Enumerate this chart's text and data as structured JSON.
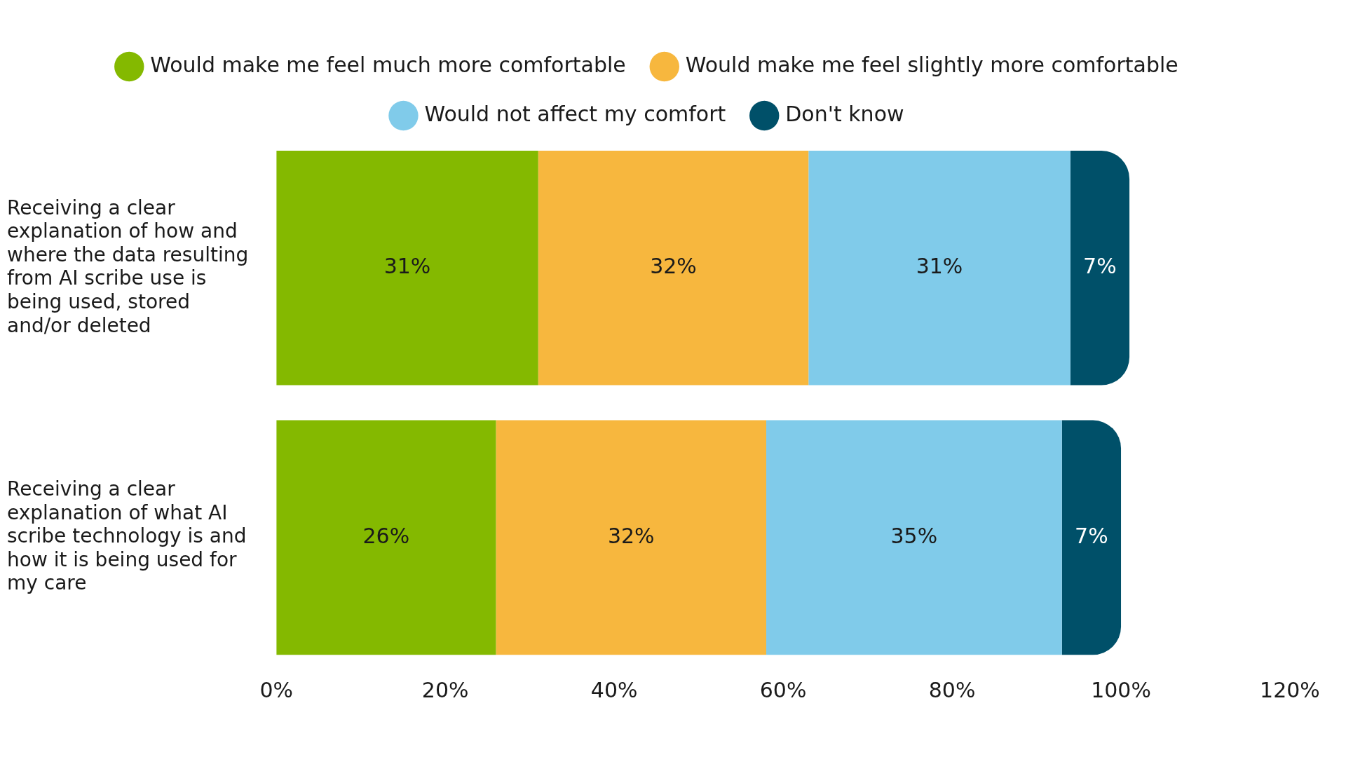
{
  "chart_data": {
    "type": "bar",
    "orientation": "horizontal",
    "stacked": true,
    "categories": [
      "Receiving a clear explanation of how and where the data resulting from AI scribe use is being used, stored and/or deleted",
      "Receiving a clear explanation of what AI scribe technology is and how it is being used for my care"
    ],
    "series": [
      {
        "name": "Would make me feel much more comfortable",
        "color": "#84b900",
        "values": [
          31,
          26
        ],
        "value_labels": [
          "31%",
          "26%"
        ]
      },
      {
        "name": "Would make me feel slightly more comfortable",
        "color": "#f7b73e",
        "values": [
          32,
          32
        ],
        "value_labels": [
          "32%",
          "32%"
        ]
      },
      {
        "name": "Would not affect my comfort",
        "color": "#80cbea",
        "values": [
          31,
          35
        ],
        "value_labels": [
          "31%",
          "35%"
        ]
      },
      {
        "name": "Don't know",
        "color": "#005069",
        "values": [
          7,
          7
        ],
        "value_labels": [
          "7%",
          "7%"
        ]
      }
    ],
    "xlim": [
      0,
      120
    ],
    "xticks": [
      {
        "value": 0,
        "label": "0%"
      },
      {
        "value": 20,
        "label": "20%"
      },
      {
        "value": 40,
        "label": "40%"
      },
      {
        "value": 60,
        "label": "60%"
      },
      {
        "value": 80,
        "label": "80%"
      },
      {
        "value": 100,
        "label": "100%"
      },
      {
        "value": 120,
        "label": "120%"
      }
    ],
    "grid": false,
    "legend": "top",
    "marker": "circle"
  }
}
